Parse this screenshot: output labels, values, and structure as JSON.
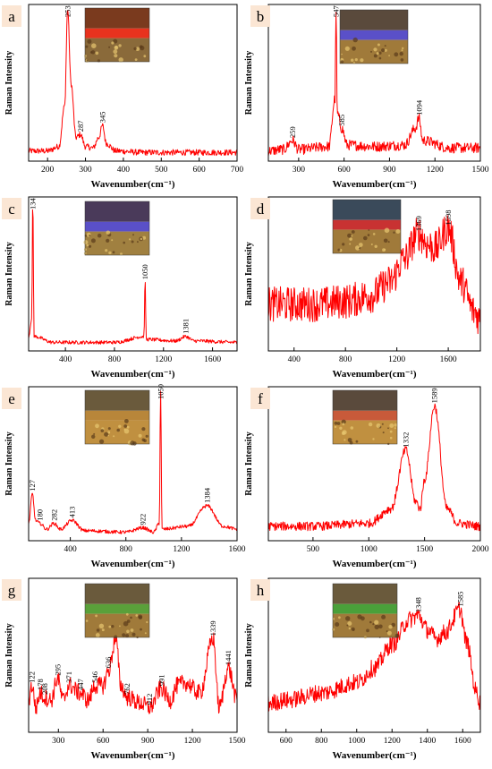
{
  "panels": [
    {
      "letter": "a",
      "xlabel": "Wavenumber(cm⁻¹)",
      "ylabel": "Raman Intensity",
      "xlim": [
        150,
        700
      ],
      "xticks": [
        200,
        300,
        400,
        500,
        600,
        700
      ],
      "peaks": [
        253,
        287,
        345
      ],
      "inset": {
        "top": "#7a3a1e",
        "band": "#e8321e",
        "bottom": "#8a6a3a"
      }
    },
    {
      "letter": "b",
      "xlabel": "Wavenumber(cm⁻¹)",
      "ylabel": "Raman Intensity",
      "xlim": [
        100,
        1500
      ],
      "xticks": [
        300,
        600,
        900,
        1200,
        1500
      ],
      "peaks": [
        259,
        547,
        585,
        1094
      ],
      "inset": {
        "top": "#5a4a3c",
        "band": "#5a50c8",
        "bottom": "#a07a3a"
      }
    },
    {
      "letter": "c",
      "xlabel": "Wavenumber(cm⁻¹)",
      "ylabel": "Raman Intensity",
      "xlim": [
        100,
        1800
      ],
      "xticks": [
        400,
        800,
        1200,
        1600
      ],
      "peaks": [
        134,
        1050,
        1381
      ],
      "inset": {
        "top": "#4a3a5a",
        "band": "#5a50c8",
        "bottom": "#a08040"
      }
    },
    {
      "letter": "d",
      "xlabel": "Wavenumber(cm⁻¹)",
      "ylabel": "Raman Intensity",
      "xlim": [
        200,
        1850
      ],
      "xticks": [
        400,
        800,
        1200,
        1600
      ],
      "peaks": [
        1369,
        1598
      ],
      "inset": {
        "top": "#3a4a5a",
        "band": "#c83232",
        "bottom": "#a07a3a"
      }
    },
    {
      "letter": "e",
      "xlabel": "Wavenumber(cm⁻¹)",
      "ylabel": "Raman Intensity",
      "xlim": [
        100,
        1600
      ],
      "xticks": [
        400,
        800,
        1200,
        1600
      ],
      "peaks": [
        127,
        180,
        282,
        413,
        922,
        1050,
        1384
      ],
      "inset": {
        "top": "#6a5a3c",
        "band": "#b8863a",
        "bottom": "#c09040"
      }
    },
    {
      "letter": "f",
      "xlabel": "Wavenumber(cm⁻¹)",
      "ylabel": "Raman Intensity",
      "xlim": [
        100,
        2000
      ],
      "xticks": [
        500,
        1000,
        1500,
        2000
      ],
      "peaks": [
        1332,
        1589
      ],
      "inset": {
        "top": "#5a4a3c",
        "band": "#c85a3a",
        "bottom": "#c09040"
      }
    },
    {
      "letter": "g",
      "xlabel": "Wavenumber(cm⁻¹)",
      "ylabel": "Raman Intensity",
      "xlim": [
        100,
        1500
      ],
      "xticks": [
        300,
        600,
        900,
        1200,
        1500
      ],
      "peaks": [
        122,
        178,
        208,
        295,
        371,
        447,
        546,
        636,
        685,
        762,
        912,
        991,
        1339,
        1441
      ],
      "inset": {
        "top": "#6a5a3c",
        "band": "#5aa03a",
        "bottom": "#a07a3a"
      }
    },
    {
      "letter": "h",
      "xlabel": "Wavenumber(cm⁻¹)",
      "ylabel": "Raman Intensity",
      "xlim": [
        500,
        1700
      ],
      "xticks": [
        600,
        800,
        1000,
        1200,
        1400,
        1600
      ],
      "peaks": [
        1348,
        1585
      ],
      "inset": {
        "top": "#6a5a3c",
        "band": "#4aa03a",
        "bottom": "#a07a3a"
      }
    }
  ],
  "colors": {
    "spectrum": "#ff0000",
    "label_box": "#fbe6d4",
    "axis": "#000000"
  },
  "chart_data": [
    {
      "type": "line",
      "panel": "a",
      "xlabel": "Wavenumber(cm⁻¹)",
      "ylabel": "Raman Intensity",
      "xlim": [
        150,
        700
      ],
      "y_tick_labels": false,
      "series": [
        {
          "x": [
            150,
            200,
            230,
            245,
            253,
            262,
            275,
            287,
            300,
            320,
            335,
            345,
            355,
            380,
            450,
            550,
            650,
            700
          ],
          "y": [
            0.05,
            0.05,
            0.08,
            0.35,
            1.0,
            0.5,
            0.14,
            0.16,
            0.08,
            0.07,
            0.14,
            0.22,
            0.1,
            0.05,
            0.04,
            0.04,
            0.04,
            0.04
          ]
        }
      ]
    },
    {
      "type": "line",
      "panel": "b",
      "xlabel": "Wavenumber(cm⁻¹)",
      "ylabel": "Raman Intensity",
      "xlim": [
        100,
        1500
      ],
      "y_tick_labels": false,
      "series": [
        {
          "x": [
            100,
            200,
            259,
            300,
            500,
            540,
            547,
            555,
            585,
            620,
            800,
            1000,
            1070,
            1094,
            1120,
            1300,
            1500
          ],
          "y": [
            0.05,
            0.06,
            0.12,
            0.06,
            0.08,
            0.4,
            1.0,
            0.3,
            0.2,
            0.09,
            0.08,
            0.09,
            0.2,
            0.27,
            0.12,
            0.07,
            0.07
          ]
        }
      ]
    },
    {
      "type": "line",
      "panel": "c",
      "xlabel": "Wavenumber(cm⁻¹)",
      "ylabel": "Raman Intensity",
      "xlim": [
        100,
        1800
      ],
      "y_tick_labels": false,
      "series": [
        {
          "x": [
            100,
            125,
            134,
            145,
            300,
            800,
            1040,
            1050,
            1060,
            1300,
            1381,
            1450,
            1800
          ],
          "y": [
            0.08,
            0.2,
            1.0,
            0.08,
            0.04,
            0.04,
            0.08,
            0.45,
            0.06,
            0.05,
            0.08,
            0.05,
            0.04
          ]
        }
      ]
    },
    {
      "type": "line",
      "panel": "d",
      "xlabel": "Wavenumber(cm⁻¹)",
      "ylabel": "Raman Intensity",
      "xlim": [
        200,
        1850
      ],
      "y_tick_labels": false,
      "series": [
        {
          "x": [
            200,
            400,
            600,
            800,
            1000,
            1150,
            1250,
            1369,
            1450,
            1500,
            1598,
            1700,
            1800,
            1850
          ],
          "y": [
            0.3,
            0.3,
            0.3,
            0.32,
            0.36,
            0.45,
            0.6,
            0.78,
            0.7,
            0.68,
            0.82,
            0.45,
            0.25,
            0.2
          ]
        }
      ]
    },
    {
      "type": "line",
      "panel": "e",
      "xlabel": "Wavenumber(cm⁻¹)",
      "ylabel": "Raman Intensity",
      "xlim": [
        100,
        1600
      ],
      "y_tick_labels": false,
      "series": [
        {
          "x": [
            100,
            127,
            150,
            180,
            230,
            282,
            330,
            413,
            500,
            800,
            922,
            1000,
            1040,
            1050,
            1060,
            1250,
            1384,
            1500,
            1600
          ],
          "y": [
            0.1,
            0.3,
            0.12,
            0.1,
            0.06,
            0.1,
            0.06,
            0.12,
            0.05,
            0.04,
            0.07,
            0.04,
            0.1,
            1.0,
            0.06,
            0.08,
            0.22,
            0.08,
            0.06
          ]
        }
      ]
    },
    {
      "type": "line",
      "panel": "f",
      "xlabel": "Wavenumber(cm⁻¹)",
      "ylabel": "Raman Intensity",
      "xlim": [
        100,
        2000
      ],
      "y_tick_labels": false,
      "series": [
        {
          "x": [
            100,
            500,
            1000,
            1200,
            1332,
            1420,
            1460,
            1500,
            1589,
            1700,
            1800,
            2000
          ],
          "y": [
            0.08,
            0.08,
            0.1,
            0.2,
            0.6,
            0.25,
            0.2,
            0.4,
            0.9,
            0.2,
            0.1,
            0.08
          ]
        }
      ]
    },
    {
      "type": "line",
      "panel": "g",
      "xlabel": "Wavenumber(cm⁻¹)",
      "ylabel": "Raman Intensity",
      "xlim": [
        100,
        1500
      ],
      "y_tick_labels": false,
      "series": [
        {
          "x": [
            100,
            122,
            150,
            178,
            208,
            250,
            295,
            330,
            371,
            447,
            500,
            546,
            600,
            636,
            685,
            720,
            762,
            850,
            912,
            991,
            1050,
            1100,
            1150,
            1250,
            1339,
            1380,
            1441,
            1500
          ],
          "y": [
            0.2,
            0.3,
            0.15,
            0.25,
            0.22,
            0.2,
            0.35,
            0.2,
            0.3,
            0.25,
            0.2,
            0.3,
            0.3,
            0.4,
            0.62,
            0.3,
            0.22,
            0.18,
            0.15,
            0.28,
            0.2,
            0.3,
            0.32,
            0.25,
            0.62,
            0.15,
            0.42,
            0.2
          ]
        }
      ]
    },
    {
      "type": "line",
      "panel": "h",
      "xlabel": "Wavenumber(cm⁻¹)",
      "ylabel": "Raman Intensity",
      "xlim": [
        500,
        1700
      ],
      "y_tick_labels": false,
      "series": [
        {
          "x": [
            500,
            600,
            800,
            1000,
            1100,
            1200,
            1300,
            1348,
            1400,
            1450,
            1500,
            1585,
            1620,
            1680,
            1700
          ],
          "y": [
            0.18,
            0.2,
            0.25,
            0.32,
            0.42,
            0.58,
            0.75,
            0.78,
            0.68,
            0.62,
            0.66,
            0.82,
            0.6,
            0.25,
            0.18
          ]
        }
      ]
    }
  ]
}
